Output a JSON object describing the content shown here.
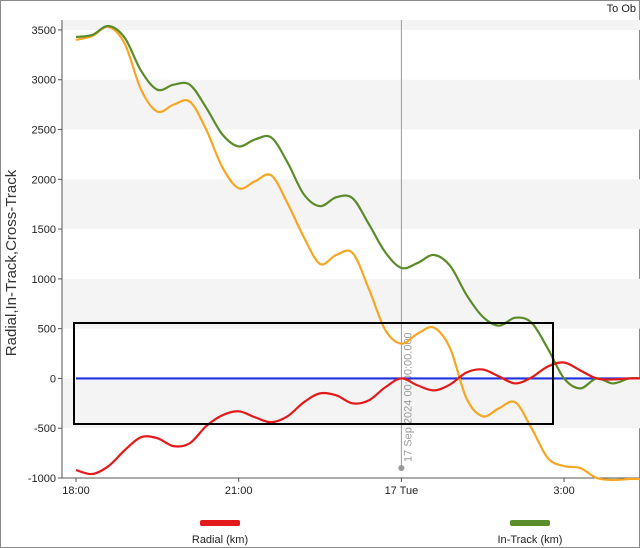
{
  "corner_label": "To Ob",
  "chart_data": {
    "type": "line",
    "title": "",
    "ylabel": "Radial,In-Track,Cross-Track",
    "xlabel": "",
    "ylim": [
      -1000,
      3600
    ],
    "yticks": [
      -1000,
      -500,
      0,
      500,
      1000,
      1500,
      2000,
      2500,
      3000,
      3500
    ],
    "xlim": [
      18.0,
      28.4
    ],
    "xticks": [
      {
        "x": 18,
        "label": "18:00"
      },
      {
        "x": 21,
        "label": "21:00"
      },
      {
        "x": 24,
        "label": "17 Tue"
      },
      {
        "x": 27,
        "label": "3:00"
      }
    ],
    "cursor": {
      "x": 24.0,
      "label": "17 Sep 2024 00:00:00.000"
    },
    "grid": "alternating horizontal bands",
    "legend": [
      {
        "name": "Radial (km)",
        "color": "#e31a1c"
      },
      {
        "name": "In-Track (km)",
        "color": "#5b8c2a"
      }
    ],
    "series": [
      {
        "name": "Radial (km)",
        "color": "#e31a1c",
        "x": [
          18.0,
          18.3,
          18.6,
          18.9,
          19.2,
          19.5,
          19.8,
          20.1,
          20.4,
          20.7,
          21.0,
          21.3,
          21.6,
          21.9,
          22.2,
          22.5,
          22.8,
          23.1,
          23.4,
          23.7,
          24.0,
          24.3,
          24.6,
          24.9,
          25.2,
          25.5,
          25.8,
          26.1,
          26.4,
          26.7,
          27.0,
          27.3,
          27.6,
          27.9,
          28.2,
          28.4
        ],
        "values": [
          -920,
          -960,
          -880,
          -720,
          -590,
          -600,
          -680,
          -650,
          -480,
          -370,
          -330,
          -390,
          -440,
          -380,
          -240,
          -150,
          -170,
          -250,
          -220,
          -90,
          0,
          -70,
          -120,
          -60,
          60,
          90,
          20,
          -50,
          10,
          120,
          160,
          80,
          0,
          -10,
          0,
          0
        ]
      },
      {
        "name": "In-Track (km)",
        "color": "#5b8c2a",
        "x": [
          18.0,
          18.3,
          18.6,
          18.9,
          19.2,
          19.5,
          19.8,
          20.1,
          20.4,
          20.7,
          21.0,
          21.3,
          21.6,
          21.9,
          22.2,
          22.5,
          22.8,
          23.1,
          23.4,
          23.7,
          24.0,
          24.3,
          24.6,
          24.9,
          25.2,
          25.5,
          25.8,
          26.1,
          26.4,
          26.7,
          27.0,
          27.3,
          27.6,
          27.9,
          28.2,
          28.4
        ],
        "values": [
          3430,
          3450,
          3540,
          3420,
          3090,
          2900,
          2950,
          2950,
          2720,
          2450,
          2330,
          2400,
          2420,
          2170,
          1850,
          1730,
          1820,
          1810,
          1550,
          1270,
          1110,
          1160,
          1240,
          1130,
          840,
          620,
          530,
          610,
          560,
          300,
          0,
          -100,
          0,
          -50,
          0,
          0
        ]
      },
      {
        "name": "",
        "color": "#f5a623",
        "x": [
          18.0,
          18.3,
          18.6,
          18.9,
          19.2,
          19.5,
          19.8,
          20.1,
          20.4,
          20.7,
          21.0,
          21.3,
          21.6,
          21.9,
          22.2,
          22.5,
          22.8,
          23.1,
          23.4,
          23.7,
          24.0,
          24.3,
          24.6,
          24.9,
          25.2,
          25.5,
          25.8,
          26.1,
          26.4,
          26.7,
          27.0,
          27.3,
          27.6,
          27.9,
          28.2,
          28.4
        ],
        "values": [
          3400,
          3440,
          3530,
          3360,
          2900,
          2680,
          2750,
          2780,
          2500,
          2120,
          1910,
          1980,
          2040,
          1760,
          1420,
          1150,
          1240,
          1260,
          900,
          490,
          350,
          450,
          510,
          300,
          -200,
          -380,
          -300,
          -240,
          -500,
          -800,
          -880,
          -900,
          -1000,
          -1020,
          -1010,
          -1010
        ]
      },
      {
        "name": "",
        "color": "#2233dd",
        "x": [
          18.0,
          28.4
        ],
        "values": [
          0,
          0
        ]
      }
    ]
  }
}
